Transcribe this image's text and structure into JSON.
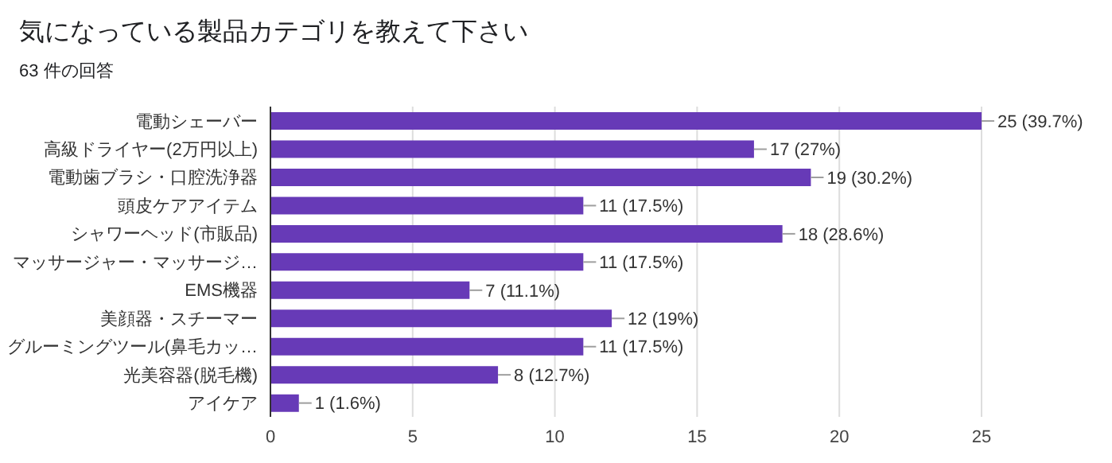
{
  "chart_data": {
    "type": "bar",
    "orientation": "horizontal",
    "title": "気になっている製品カテゴリを教えて下さい",
    "subtitle": "63 件の回答",
    "categories": [
      "電動シェーバー",
      "高級ドライヤー(2万円以上)",
      "電動歯ブラシ・口腔洗浄器",
      "頭皮ケアアイテム",
      "シャワーヘッド(市販品)",
      "マッサージャー・マッサージ…",
      "EMS機器",
      "美顔器・スチーマー",
      "グルーミングツール(鼻毛カッ…",
      "光美容器(脱毛機)",
      "アイケア"
    ],
    "values": [
      25,
      17,
      19,
      11,
      18,
      11,
      7,
      12,
      11,
      8,
      1
    ],
    "value_labels": [
      "25 (39.7%)",
      "17 (27%)",
      "19 (30.2%)",
      "11 (17.5%)",
      "18 (28.6%)",
      "11 (17.5%)",
      "7 (11.1%)",
      "12 (19%)",
      "11 (17.5%)",
      "8 (12.7%)",
      "1 (1.6%)"
    ],
    "color": "#673ab7",
    "xlim": [
      0,
      25
    ],
    "xticks": [
      0,
      5,
      10,
      15,
      20,
      25
    ],
    "grid": "x"
  }
}
